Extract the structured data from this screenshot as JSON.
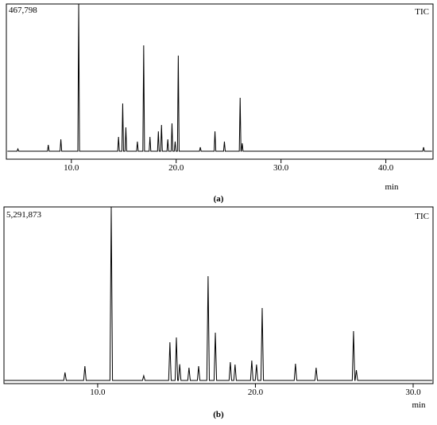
{
  "chart_data": [
    {
      "type": "line",
      "annotation": "TIC",
      "xlabel": "min",
      "caption": "(a)",
      "xlim": [
        3.8,
        44.5
      ],
      "xticks": [
        {
          "value": 10,
          "label": "10.0"
        },
        {
          "value": 20,
          "label": "20.0"
        },
        {
          "value": 30,
          "label": "30.0"
        },
        {
          "value": 40,
          "label": "40.0"
        }
      ],
      "ylim": [
        0,
        467798
      ],
      "yticks": [
        {
          "value": 467798,
          "label": "467,798"
        }
      ],
      "color": "#000000",
      "x": [
        3.9,
        4.82,
        4.9,
        4.98,
        7.72,
        7.8,
        7.88,
        8.92,
        9.0,
        9.08,
        10.62,
        10.7,
        10.78,
        14.42,
        14.5,
        14.58,
        14.82,
        14.9,
        14.98,
        15.12,
        15.2,
        15.28,
        16.22,
        16.3,
        16.38,
        16.82,
        16.9,
        16.98,
        17.42,
        17.5,
        17.58,
        18.22,
        18.3,
        18.38,
        18.52,
        18.6,
        18.68,
        19.12,
        19.2,
        19.28,
        19.52,
        19.6,
        19.68,
        19.82,
        19.9,
        19.98,
        20.12,
        20.2,
        20.28,
        22.22,
        22.3,
        22.38,
        23.62,
        23.7,
        23.78,
        24.52,
        24.6,
        24.68,
        26.02,
        26.1,
        26.18,
        26.22,
        26.3,
        26.38,
        43.52,
        43.6,
        43.68,
        44.4
      ],
      "values": [
        24000,
        24000,
        31000,
        24000,
        24000,
        43000,
        24000,
        24000,
        60000,
        24000,
        24000,
        467798,
        24000,
        24000,
        67000,
        24000,
        24000,
        168000,
        24000,
        24000,
        96000,
        24000,
        24000,
        53000,
        24000,
        24000,
        343000,
        24000,
        24000,
        67000,
        24000,
        24000,
        84000,
        24000,
        24000,
        103000,
        24000,
        24000,
        60000,
        24000,
        24000,
        108000,
        24000,
        24000,
        53000,
        24000,
        24000,
        312000,
        24000,
        24000,
        36000,
        24000,
        24000,
        84000,
        24000,
        24000,
        53000,
        24000,
        24000,
        185000,
        24000,
        24000,
        48000,
        24000,
        24000,
        36000,
        24000,
        24000
      ]
    },
    {
      "type": "line",
      "annotation": "TIC",
      "xlabel": "min",
      "caption": "(b)",
      "xlim": [
        4.06,
        31.26
      ],
      "xticks": [
        {
          "value": 10,
          "label": "10.0"
        },
        {
          "value": 20,
          "label": "20.0"
        },
        {
          "value": 30,
          "label": "30.0"
        }
      ],
      "ylim": [
        0,
        5291873
      ],
      "yticks": [
        {
          "value": 5291873,
          "label": "5,291,873"
        }
      ],
      "color": "#000000",
      "x": [
        4.1,
        7.85,
        7.93,
        8.01,
        9.11,
        9.19,
        9.27,
        10.78,
        10.86,
        10.94,
        12.84,
        12.92,
        13.0,
        14.5,
        14.58,
        14.66,
        14.91,
        14.99,
        15.07,
        15.12,
        15.2,
        15.28,
        15.71,
        15.79,
        15.87,
        16.32,
        16.4,
        16.48,
        16.92,
        17.0,
        17.08,
        17.38,
        17.46,
        17.54,
        18.33,
        18.41,
        18.49,
        18.63,
        18.71,
        18.79,
        19.69,
        19.77,
        19.85,
        19.99,
        20.07,
        20.15,
        20.35,
        20.43,
        20.51,
        22.46,
        22.54,
        22.62,
        23.77,
        23.85,
        23.93,
        26.14,
        26.22,
        26.3,
        26.32,
        26.4,
        26.48,
        31.2
      ],
      "values": [
        95000,
        95000,
        334000,
        95000,
        95000,
        524000,
        95000,
        95000,
        5291873,
        95000,
        95000,
        238000,
        95000,
        95000,
        1240000,
        95000,
        95000,
        1383000,
        95000,
        95000,
        580000,
        95000,
        95000,
        477000,
        95000,
        95000,
        524000,
        95000,
        95000,
        3218000,
        95000,
        95000,
        1525000,
        95000,
        95000,
        644000,
        95000,
        95000,
        572000,
        95000,
        95000,
        691000,
        95000,
        95000,
        572000,
        95000,
        95000,
        2265000,
        95000,
        95000,
        596000,
        95000,
        95000,
        477000,
        95000,
        95000,
        1573000,
        95000,
        95000,
        405000,
        95000,
        95000
      ]
    }
  ]
}
